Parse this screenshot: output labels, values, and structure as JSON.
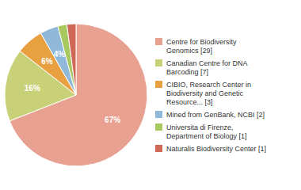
{
  "chart_data": {
    "type": "pie",
    "categories": [
      "Centre for Biodiversity\nGenomics [29]",
      "Canadian Centre for DNA\nBarcoding [7]",
      "CIBIO, Research Center in\nBiodiversity and Genetic\nResource... [3]",
      "Mined from GenBank, NCBI [2]",
      "Universita di Firenze,\nDepartment of Biology [1]",
      "Naturalis Biodiversity Center [1]"
    ],
    "values": [
      67,
      16,
      6,
      4,
      2,
      2
    ],
    "value_labels": [
      "67%",
      "16%",
      "6%",
      "4%",
      null,
      null
    ],
    "data_labels": true,
    "colors": [
      "#e8a090",
      "#c8d078",
      "#e8a040",
      "#90b8d8",
      "#a8c860",
      "#d06858"
    ]
  }
}
